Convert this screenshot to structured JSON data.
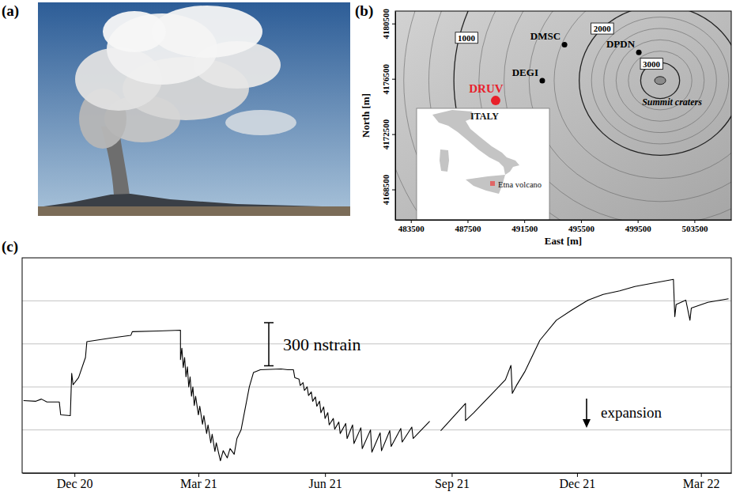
{
  "chart_data": [
    {
      "type": "photo",
      "panel": "(a)"
    },
    {
      "type": "map",
      "panel": "(b)",
      "x_label": "East [m]",
      "y_label": "North [m]",
      "xlim": [
        482400,
        506100
      ],
      "ylim": [
        4166300,
        4181400
      ],
      "xticks": [
        483500,
        487500,
        491500,
        495500,
        499500,
        503500
      ],
      "yticks": [
        4168500,
        4172500,
        4176500,
        4180500
      ],
      "stations": [
        {
          "name": "DRUV",
          "x": 489480,
          "y": 4174930,
          "color": "#e8202a"
        },
        {
          "name": "DEGI",
          "x": 492770,
          "y": 4176370,
          "color": "#000000"
        },
        {
          "name": "DMSC",
          "x": 494340,
          "y": 4178970,
          "color": "#000000"
        },
        {
          "name": "DPDN",
          "x": 499580,
          "y": 4178410,
          "color": "#000000"
        }
      ],
      "contours": [
        {
          "value": 1000,
          "x": 487420,
          "y": 4179460
        },
        {
          "value": 2000,
          "x": 496990,
          "y": 4180130
        },
        {
          "value": 3000,
          "x": 500470,
          "y": 4177580
        }
      ],
      "annotations": [
        {
          "text": "Summit craters",
          "x": 501920,
          "y": 4174600
        }
      ],
      "inset": {
        "title": "ITALY",
        "label": "Etna volcano",
        "color": "#e06666"
      }
    },
    {
      "type": "line",
      "panel": "(c)",
      "color": "#000000",
      "x": [
        "2020-10-25",
        "2020-11-03",
        "2020-11-07",
        "2020-11-11",
        "2020-11-20",
        "2020-11-21",
        "2020-11-28",
        "2020-11-29",
        "2020-11-30",
        "2020-12-04",
        "2020-12-09",
        "2020-12-10",
        "2020-12-27",
        "2021-01-11",
        "2021-01-12",
        "2021-01-31",
        "2021-02-16",
        "2021-02-16",
        "2021-02-17",
        "2021-02-18",
        "2021-02-19",
        "2021-02-20",
        "2021-02-21",
        "2021-02-22",
        "2021-02-23",
        "2021-02-24",
        "2021-02-25",
        "2021-02-26",
        "2021-02-27",
        "2021-03-01",
        "2021-03-02",
        "2021-03-04",
        "2021-03-05",
        "2021-03-07",
        "2021-03-08",
        "2021-03-10",
        "2021-03-11",
        "2021-03-13",
        "2021-03-14",
        "2021-03-17",
        "2021-03-19",
        "2021-03-22",
        "2021-03-24",
        "2021-03-27",
        "2021-03-29",
        "2021-04-01",
        "2021-04-04",
        "2021-04-07",
        "2021-04-10",
        "2021-04-15",
        "2021-04-30",
        "2021-05-05",
        "2021-05-09",
        "2021-05-10",
        "2021-05-13",
        "2021-05-14",
        "2021-05-16",
        "2021-05-17",
        "2021-05-19",
        "2021-05-20",
        "2021-05-22",
        "2021-05-23",
        "2021-05-25",
        "2021-05-26",
        "2021-05-28",
        "2021-05-29",
        "2021-05-31",
        "2021-06-01",
        "2021-06-03",
        "2021-06-04",
        "2021-06-07",
        "2021-06-08",
        "2021-06-11",
        "2021-06-12",
        "2021-06-16",
        "2021-06-17",
        "2021-06-21",
        "2021-06-22",
        "2021-06-27",
        "2021-06-28",
        "2021-07-04",
        "2021-07-05",
        "2021-07-11",
        "2021-07-12",
        "2021-07-18",
        "2021-07-19",
        "2021-07-26",
        "2021-07-27",
        "2021-08-03",
        "2021-08-04",
        "2021-08-16",
        "2021-08-20",
        "2021-08-24",
        "2021-09-02",
        "2021-09-11",
        "2021-09-11",
        "2021-09-17",
        "2021-09-29",
        "2021-10-10",
        "2021-10-14",
        "2021-10-15",
        "2021-10-18",
        "2021-10-24",
        "2021-11-04",
        "2021-11-16",
        "2021-11-27",
        "2021-12-09",
        "2021-12-20",
        "2022-01-01",
        "2022-01-12",
        "2022-01-29",
        "2022-02-09",
        "2022-02-10",
        "2022-02-11",
        "2022-02-18",
        "2022-02-21",
        "2022-02-22",
        "2022-03-06",
        "2022-03-21"
      ],
      "values": [
        205,
        200,
        215,
        195,
        195,
        105,
        100,
        395,
        315,
        365,
        505,
        615,
        640,
        660,
        685,
        690,
        695,
        490,
        570,
        435,
        505,
        370,
        440,
        300,
        370,
        235,
        300,
        170,
        235,
        105,
        165,
        40,
        100,
        -25,
        35,
        -90,
        -30,
        -150,
        -90,
        -215,
        -145,
        -195,
        -130,
        -170,
        -60,
        0,
        150,
        300,
        400,
        420,
        425,
        420,
        420,
        365,
        355,
        310,
        330,
        275,
        300,
        240,
        265,
        200,
        230,
        165,
        200,
        120,
        160,
        80,
        120,
        35,
        80,
        5,
        55,
        -25,
        45,
        -60,
        35,
        -95,
        15,
        -130,
        0,
        -155,
        -20,
        -145,
        -5,
        -115,
        10,
        -85,
        20,
        -60,
        60,
        null,
        -5,
        90,
        185,
        65,
        120,
        240,
        350,
        450,
        255,
        310,
        405,
        625,
        765,
        835,
        905,
        945,
        970,
        1000,
        1030,
        1050,
        790,
        875,
        905,
        765,
        850,
        890,
        915
      ],
      "xlim": [
        "2020-10-24",
        "2022-03-23"
      ],
      "ylim": [
        -300,
        1200
      ],
      "xticks": [
        {
          "value": "2020-12-01",
          "label": "Dec 20"
        },
        {
          "value": "2021-03-01",
          "label": "Mar 21"
        },
        {
          "value": "2021-06-01",
          "label": "Jun 21"
        },
        {
          "value": "2021-09-01",
          "label": "Sep 21"
        },
        {
          "value": "2021-12-01",
          "label": "Dec 21"
        },
        {
          "value": "2022-03-01",
          "label": "Mar 22"
        }
      ],
      "yticks": [
        0,
        300,
        600,
        900
      ],
      "grid": true,
      "tick_labels": "x",
      "scale_bar": {
        "value": 300,
        "label": "300 nstrain"
      },
      "annotations": [
        {
          "text": "expansion"
        }
      ]
    }
  ]
}
